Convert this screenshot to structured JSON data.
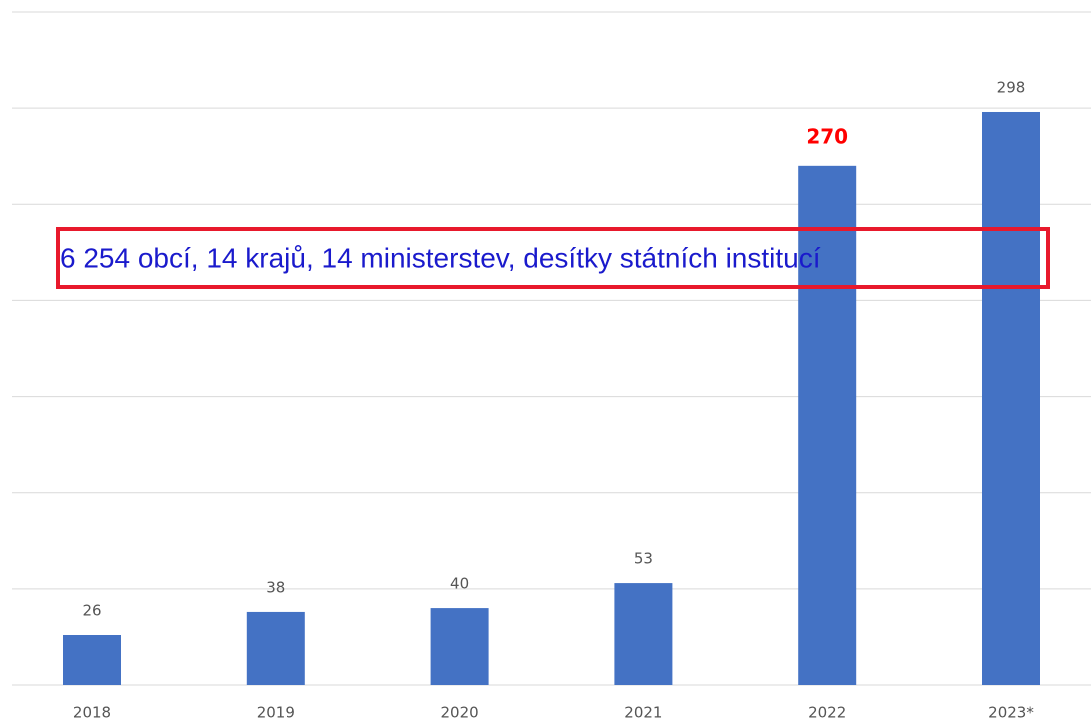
{
  "chart_data": {
    "type": "bar",
    "categories": [
      "2018",
      "2019",
      "2020",
      "2021",
      "2022",
      "2023*"
    ],
    "values": [
      26,
      38,
      40,
      53,
      270,
      298
    ],
    "color": "#4472c4",
    "ylim": [
      0,
      350
    ],
    "yticks": [
      0,
      50,
      100,
      150,
      200,
      250,
      300,
      350
    ],
    "grid": true,
    "highlight": {
      "index": 4,
      "color": "#ff0000"
    },
    "annotation": {
      "text": "6 254 obcí, 14 krajů, 14 ministerstev, desítky státních institucí",
      "text_color": "#1a1acc",
      "border_color": "#e8192c"
    }
  }
}
